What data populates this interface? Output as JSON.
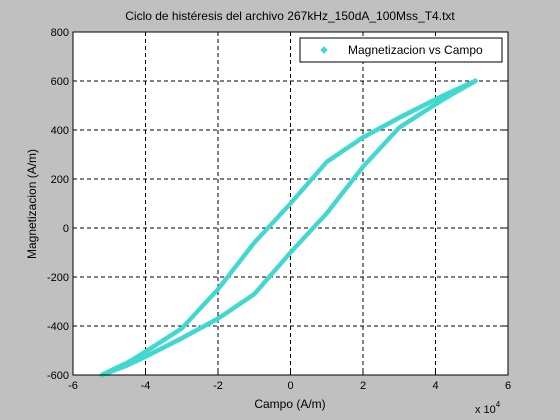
{
  "chart_data": {
    "type": "scatter",
    "title": "Ciclo de histéresis del archivo 267kHz_150dA_100Mss_T4.txt",
    "xlabel": "Campo (A/m)",
    "ylabel": "Magnetizacion (A/m)",
    "x_multiplier_label": "x 10",
    "x_multiplier_exponent": "4",
    "xlim": [
      -6,
      6
    ],
    "ylim": [
      -600,
      800
    ],
    "x_ticks": [
      -6,
      -4,
      -2,
      0,
      2,
      4,
      6
    ],
    "y_ticks": [
      -600,
      -400,
      -200,
      0,
      200,
      400,
      600,
      800
    ],
    "grid": true,
    "legend_position": "top-right",
    "series": [
      {
        "name": "Magnetizacion vs Campo",
        "color": "#40d8d0",
        "marker": "diamond",
        "branch_upper": {
          "x": [
            5.1,
            4.5,
            4.0,
            3.0,
            2.0,
            1.0,
            0.0,
            -0.5,
            -1.0,
            -2.0,
            -3.0,
            -4.0,
            -4.5,
            -5.0,
            -5.2
          ],
          "y": [
            600,
            560,
            525,
            450,
            370,
            270,
            100,
            20,
            -60,
            -250,
            -410,
            -505,
            -550,
            -585,
            -600
          ]
        },
        "branch_lower": {
          "x": [
            -5.2,
            -4.5,
            -4.0,
            -3.0,
            -2.0,
            -1.0,
            0.0,
            0.5,
            1.0,
            2.0,
            3.0,
            4.0,
            4.5,
            5.1
          ],
          "y": [
            -600,
            -560,
            -525,
            -450,
            -370,
            -270,
            -100,
            -20,
            60,
            250,
            410,
            505,
            550,
            600
          ]
        }
      }
    ]
  }
}
